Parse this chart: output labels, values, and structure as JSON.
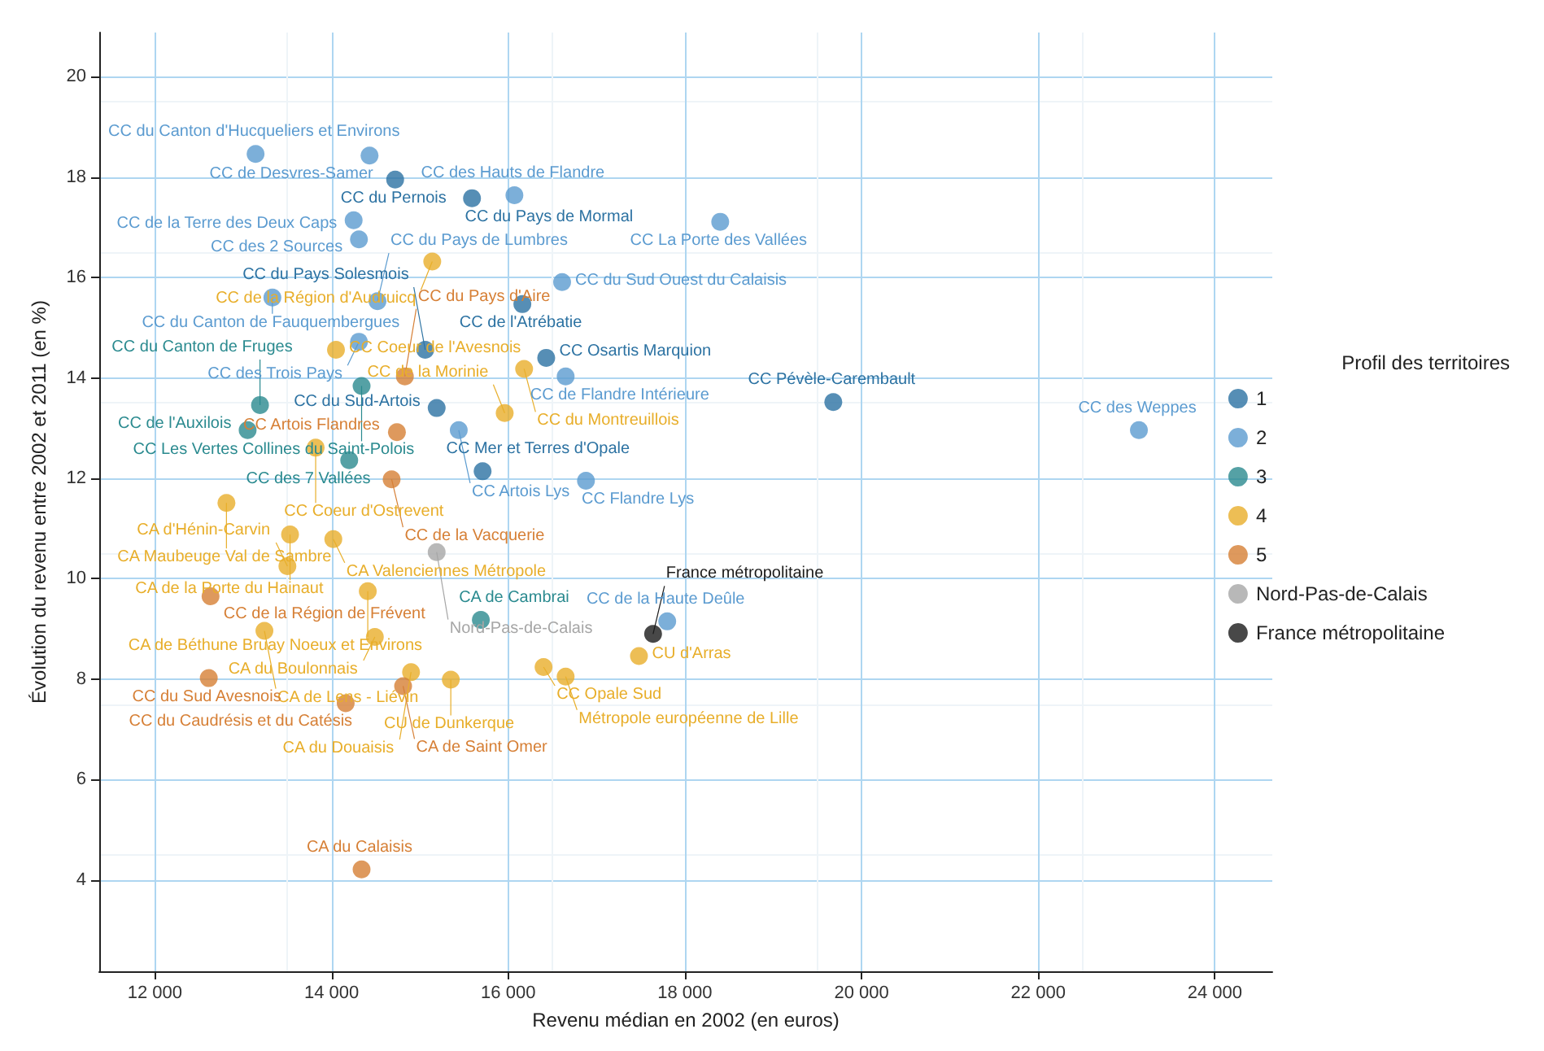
{
  "chart_data": {
    "type": "scatter",
    "xlabel": "Revenu médian en 2002 (en euros)",
    "ylabel": "Évolution du revenu entre 2002 et 2011 (en %)",
    "legend_title": "Profil des territoires",
    "legend": "right",
    "grid": true,
    "marker": "circle",
    "xlim": [
      11370,
      24650
    ],
    "ylim": [
      2.18,
      20.88
    ],
    "xticks": [
      {
        "value": 12000,
        "label": "12 000"
      },
      {
        "value": 14000,
        "label": "14 000"
      },
      {
        "value": 16000,
        "label": "16 000"
      },
      {
        "value": 18000,
        "label": "18 000"
      },
      {
        "value": 20000,
        "label": "20 000"
      },
      {
        "value": 22000,
        "label": "22 000"
      },
      {
        "value": 24000,
        "label": "24 000"
      }
    ],
    "yticks": [
      4,
      6,
      8,
      10,
      12,
      14,
      16,
      18,
      20
    ],
    "series": [
      {
        "name": "1",
        "color": "#2c72a2",
        "x": [
          14720,
          15590,
          16160,
          15060,
          16430,
          15190,
          19680,
          15710
        ],
        "values": [
          17.95,
          17.58,
          15.47,
          14.56,
          14.4,
          13.4,
          13.52,
          12.14
        ]
      },
      {
        "name": "2",
        "color": "#5b9bd0",
        "x": [
          13140,
          14430,
          16070,
          18400,
          14250,
          14310,
          16610,
          13330,
          14520,
          14310,
          16650,
          15440,
          23140,
          16880,
          17800
        ],
        "values": [
          18.46,
          18.43,
          17.64,
          17.11,
          17.14,
          16.76,
          15.91,
          15.6,
          15.53,
          14.72,
          14.03,
          12.96,
          12.96,
          11.95,
          9.15
        ]
      },
      {
        "name": "3",
        "color": "#2a8a8f",
        "x": [
          14340,
          13190,
          13050,
          14200,
          15690
        ],
        "values": [
          13.84,
          13.46,
          12.96,
          12.36,
          9.18
        ]
      },
      {
        "name": "4",
        "color": "#e8ae2a",
        "x": [
          15140,
          14050,
          16180,
          15960,
          13820,
          12810,
          13530,
          14020,
          13500,
          14410,
          13240,
          14490,
          14900,
          15350,
          16400,
          16650,
          17480
        ],
        "values": [
          16.32,
          14.56,
          14.18,
          13.3,
          12.61,
          11.51,
          10.88,
          10.79,
          10.25,
          9.75,
          8.96,
          8.84,
          8.14,
          7.99,
          8.24,
          8.05,
          8.46
        ]
      },
      {
        "name": "5",
        "color": "#d67f35",
        "x": [
          14830,
          14740,
          14680,
          12630,
          12610,
          14810,
          14160,
          14340
        ],
        "values": [
          14.03,
          12.92,
          11.98,
          9.65,
          8.02,
          7.86,
          7.52,
          4.21
        ]
      },
      {
        "name": "Nord-Pas-de-Calais",
        "color": "#a6a6a6",
        "x": [
          15190
        ],
        "values": [
          10.53
        ]
      },
      {
        "name": "France métropolitaine",
        "color": "#1a1a1a",
        "x": [
          17640
        ],
        "values": [
          8.9
        ]
      }
    ],
    "annotations": [
      {
        "text": "CC du Pernois",
        "x": 14720,
        "y": 17.95
      },
      {
        "text": "CC du Pays de Mormal",
        "x": 15590,
        "y": 17.58
      },
      {
        "text": "CC de l'Atrébatie",
        "x": 16160,
        "y": 15.47
      },
      {
        "text": "CC du Pays Solesmois",
        "x": 15060,
        "y": 14.56
      },
      {
        "text": "CC Osartis Marquion",
        "x": 16430,
        "y": 14.4
      },
      {
        "text": "CC du Sud-Artois",
        "x": 15190,
        "y": 13.4
      },
      {
        "text": "CC Pévèle-Carembault",
        "x": 19680,
        "y": 13.52
      },
      {
        "text": "CC Mer et Terres d'Opale",
        "x": 15710,
        "y": 12.14
      },
      {
        "text": "CC du Canton d'Hucqueliers et Environs",
        "x": 13140,
        "y": 18.46
      },
      {
        "text": "CC de Desvres-Samer",
        "x": 14430,
        "y": 18.43
      },
      {
        "text": "CC des Hauts de Flandre",
        "x": 16070,
        "y": 17.64
      },
      {
        "text": "CC La Porte des Vallées",
        "x": 18400,
        "y": 17.11
      },
      {
        "text": "CC de la Terre des Deux Caps",
        "x": 14250,
        "y": 17.14
      },
      {
        "text": "CC des 2 Sources",
        "x": 14310,
        "y": 16.76
      },
      {
        "text": "CC du Sud Ouest du Calaisis",
        "x": 16610,
        "y": 15.91
      },
      {
        "text": "CC du Canton de Fauquembergues",
        "x": 13330,
        "y": 15.6
      },
      {
        "text": "CC du Pays de Lumbres",
        "x": 14520,
        "y": 15.53
      },
      {
        "text": "CC des Trois Pays",
        "x": 14310,
        "y": 14.72
      },
      {
        "text": "CC de Flandre Intérieure",
        "x": 16650,
        "y": 14.03
      },
      {
        "text": "CC Artois Lys",
        "x": 15440,
        "y": 12.96
      },
      {
        "text": "CC des Weppes",
        "x": 23140,
        "y": 12.96
      },
      {
        "text": "CC Flandre Lys",
        "x": 16880,
        "y": 11.95
      },
      {
        "text": "CC de la Haute Deûle",
        "x": 17800,
        "y": 9.15
      },
      {
        "text": "CC Les Vertes Collines du Saint-Polois",
        "x": 14340,
        "y": 13.84
      },
      {
        "text": "CC du Canton de Fruges",
        "x": 13190,
        "y": 13.46
      },
      {
        "text": "CC de l'Auxilois",
        "x": 13050,
        "y": 12.96
      },
      {
        "text": "CC des 7 Vallées",
        "x": 14200,
        "y": 12.36
      },
      {
        "text": "CA de Cambrai",
        "x": 15690,
        "y": 9.18
      },
      {
        "text": "CC de la Région d'Audruicq",
        "x": 15140,
        "y": 16.32
      },
      {
        "text": "CC Coeur de l'Avesnois",
        "x": 14050,
        "y": 14.56
      },
      {
        "text": "CC du Montreuillois",
        "x": 16180,
        "y": 14.18
      },
      {
        "text": "CC de la Morinie",
        "x": 15960,
        "y": 13.3
      },
      {
        "text": "CC Coeur d'Ostrevent",
        "x": 13820,
        "y": 12.61
      },
      {
        "text": "CA Maubeuge Val de Sambre",
        "x": 12810,
        "y": 11.51
      },
      {
        "text": "CA de la Porte du Hainaut",
        "x": 13530,
        "y": 10.88
      },
      {
        "text": "CA Valenciennes Métropole",
        "x": 14020,
        "y": 10.79
      },
      {
        "text": "CA d'Hénin-Carvin",
        "x": 13500,
        "y": 10.25
      },
      {
        "text": "CA de Béthune Bruay Noeux et Environs",
        "x": 14410,
        "y": 9.75
      },
      {
        "text": "CA de Lens - Liévin",
        "x": 13240,
        "y": 8.96
      },
      {
        "text": "CA du Boulonnais",
        "x": 14490,
        "y": 8.84
      },
      {
        "text": "CA du Douaisis",
        "x": 14900,
        "y": 8.14
      },
      {
        "text": "CU de Dunkerque",
        "x": 15350,
        "y": 7.99
      },
      {
        "text": "CC Opale Sud",
        "x": 16400,
        "y": 8.24
      },
      {
        "text": "Métropole européenne de Lille",
        "x": 16650,
        "y": 8.05
      },
      {
        "text": "CU d'Arras",
        "x": 17480,
        "y": 8.46
      },
      {
        "text": "CC du Pays d'Aire",
        "x": 14830,
        "y": 14.03
      },
      {
        "text": "CC Artois Flandres",
        "x": 14740,
        "y": 12.92
      },
      {
        "text": "CC de la Vacquerie",
        "x": 14680,
        "y": 11.98
      },
      {
        "text": "CC de la Région de Frévent",
        "x": 12630,
        "y": 9.65
      },
      {
        "text": "CC du Sud Avesnois",
        "x": 12610,
        "y": 8.02
      },
      {
        "text": "CA de Saint Omer",
        "x": 14810,
        "y": 7.86
      },
      {
        "text": "CC du Caudrésis et du Catésis",
        "x": 14160,
        "y": 7.52
      },
      {
        "text": "CA du Calaisis",
        "x": 14340,
        "y": 4.21
      },
      {
        "text": "Nord-Pas-de-Calais",
        "x": 15190,
        "y": 10.53
      },
      {
        "text": "France métropolitaine",
        "x": 17640,
        "y": 8.9
      }
    ]
  }
}
